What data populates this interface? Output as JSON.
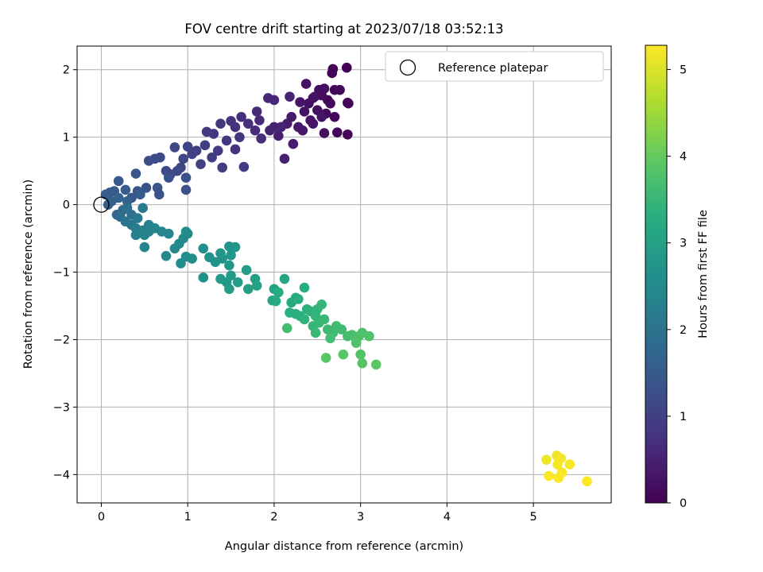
{
  "chart_data": {
    "type": "scatter",
    "title": "FOV centre drift starting at 2023/07/18 03:52:13",
    "xlabel": "Angular distance from reference (arcmin)",
    "ylabel": "Rotation from reference (arcmin)",
    "xlim": [
      -0.28,
      5.9
    ],
    "ylim": [
      -4.42,
      2.35
    ],
    "xticks": [
      0,
      1,
      2,
      3,
      4,
      5
    ],
    "yticks": [
      -4,
      -3,
      -2,
      -1,
      0,
      1,
      2
    ],
    "grid": true,
    "legend": {
      "placement": "top-right",
      "entries": [
        "Reference platepar"
      ]
    },
    "reference_point": {
      "x": 0,
      "y": 0,
      "marker": "open-circle"
    },
    "colorbar": {
      "label": "Hours from first FF file",
      "colormap": "viridis",
      "range": [
        0,
        5.28
      ],
      "ticks": [
        0,
        1,
        2,
        3,
        4,
        5
      ]
    },
    "points": [
      {
        "x": 2.84,
        "y": 2.03,
        "c": 0.02
      },
      {
        "x": 2.68,
        "y": 2.01,
        "c": 0.04
      },
      {
        "x": 2.67,
        "y": 1.95,
        "c": 0.06
      },
      {
        "x": 2.7,
        "y": 1.7,
        "c": 0.08
      },
      {
        "x": 2.76,
        "y": 1.7,
        "c": 0.1
      },
      {
        "x": 2.85,
        "y": 1.51,
        "c": 0.03
      },
      {
        "x": 2.86,
        "y": 1.5,
        "c": 0.05
      },
      {
        "x": 2.85,
        "y": 1.04,
        "c": 0.06
      },
      {
        "x": 2.73,
        "y": 1.07,
        "c": 0.07
      },
      {
        "x": 2.7,
        "y": 1.3,
        "c": 0.09
      },
      {
        "x": 2.65,
        "y": 1.5,
        "c": 0.11
      },
      {
        "x": 2.62,
        "y": 1.55,
        "c": 0.13
      },
      {
        "x": 2.6,
        "y": 1.35,
        "c": 0.15
      },
      {
        "x": 2.55,
        "y": 1.62,
        "c": 0.17
      },
      {
        "x": 2.58,
        "y": 1.06,
        "c": 0.19
      },
      {
        "x": 2.5,
        "y": 1.4,
        "c": 0.21
      },
      {
        "x": 2.45,
        "y": 1.58,
        "c": 0.23
      },
      {
        "x": 2.4,
        "y": 1.5,
        "c": 0.25
      },
      {
        "x": 2.52,
        "y": 1.7,
        "c": 0.2
      },
      {
        "x": 2.58,
        "y": 1.72,
        "c": 0.22
      },
      {
        "x": 2.37,
        "y": 1.79,
        "c": 0.24
      },
      {
        "x": 2.47,
        "y": 1.6,
        "c": 0.26
      },
      {
        "x": 2.35,
        "y": 1.38,
        "c": 0.28
      },
      {
        "x": 2.3,
        "y": 1.52,
        "c": 0.3
      },
      {
        "x": 2.42,
        "y": 1.25,
        "c": 0.32
      },
      {
        "x": 2.45,
        "y": 1.2,
        "c": 0.33
      },
      {
        "x": 2.55,
        "y": 1.3,
        "c": 0.29
      },
      {
        "x": 2.33,
        "y": 1.1,
        "c": 0.35
      },
      {
        "x": 2.28,
        "y": 1.15,
        "c": 0.37
      },
      {
        "x": 2.2,
        "y": 1.3,
        "c": 0.39
      },
      {
        "x": 2.15,
        "y": 1.2,
        "c": 0.41
      },
      {
        "x": 2.22,
        "y": 0.9,
        "c": 0.43
      },
      {
        "x": 2.12,
        "y": 0.68,
        "c": 0.45
      },
      {
        "x": 2.05,
        "y": 1.02,
        "c": 0.47
      },
      {
        "x": 2.0,
        "y": 1.15,
        "c": 0.49
      },
      {
        "x": 1.95,
        "y": 1.1,
        "c": 0.51
      },
      {
        "x": 2.08,
        "y": 1.15,
        "c": 0.53
      },
      {
        "x": 2.18,
        "y": 1.6,
        "c": 0.55
      },
      {
        "x": 2.0,
        "y": 1.55,
        "c": 0.57
      },
      {
        "x": 1.93,
        "y": 1.58,
        "c": 0.59
      },
      {
        "x": 1.8,
        "y": 1.38,
        "c": 0.61
      },
      {
        "x": 1.83,
        "y": 1.25,
        "c": 0.63
      },
      {
        "x": 1.78,
        "y": 1.1,
        "c": 0.65
      },
      {
        "x": 1.85,
        "y": 0.98,
        "c": 0.67
      },
      {
        "x": 1.7,
        "y": 1.2,
        "c": 0.69
      },
      {
        "x": 1.62,
        "y": 1.3,
        "c": 0.72
      },
      {
        "x": 1.55,
        "y": 1.15,
        "c": 0.74
      },
      {
        "x": 1.5,
        "y": 1.24,
        "c": 0.76
      },
      {
        "x": 1.6,
        "y": 1.0,
        "c": 0.78
      },
      {
        "x": 1.55,
        "y": 0.82,
        "c": 0.8
      },
      {
        "x": 1.45,
        "y": 0.95,
        "c": 0.82
      },
      {
        "x": 1.38,
        "y": 1.2,
        "c": 0.84
      },
      {
        "x": 1.3,
        "y": 1.05,
        "c": 0.86
      },
      {
        "x": 1.22,
        "y": 1.08,
        "c": 0.88
      },
      {
        "x": 1.35,
        "y": 0.8,
        "c": 0.9
      },
      {
        "x": 1.4,
        "y": 0.55,
        "c": 0.92
      },
      {
        "x": 1.65,
        "y": 0.56,
        "c": 0.94
      },
      {
        "x": 1.28,
        "y": 0.7,
        "c": 0.96
      },
      {
        "x": 1.2,
        "y": 0.88,
        "c": 0.98
      },
      {
        "x": 1.15,
        "y": 0.6,
        "c": 1.0
      },
      {
        "x": 1.1,
        "y": 0.8,
        "c": 1.02
      },
      {
        "x": 1.05,
        "y": 0.75,
        "c": 1.04
      },
      {
        "x": 1.0,
        "y": 0.86,
        "c": 1.06
      },
      {
        "x": 0.95,
        "y": 0.68,
        "c": 1.08
      },
      {
        "x": 0.92,
        "y": 0.55,
        "c": 1.1
      },
      {
        "x": 0.85,
        "y": 0.85,
        "c": 1.12
      },
      {
        "x": 0.88,
        "y": 0.5,
        "c": 1.14
      },
      {
        "x": 0.8,
        "y": 0.45,
        "c": 1.16
      },
      {
        "x": 0.75,
        "y": 0.5,
        "c": 1.18
      },
      {
        "x": 0.68,
        "y": 0.7,
        "c": 1.2
      },
      {
        "x": 0.62,
        "y": 0.68,
        "c": 1.22
      },
      {
        "x": 0.55,
        "y": 0.65,
        "c": 1.24
      },
      {
        "x": 0.98,
        "y": 0.4,
        "c": 1.26
      },
      {
        "x": 0.98,
        "y": 0.22,
        "c": 1.28
      },
      {
        "x": 0.78,
        "y": 0.4,
        "c": 1.3
      },
      {
        "x": 0.65,
        "y": 0.25,
        "c": 1.32
      },
      {
        "x": 0.67,
        "y": 0.15,
        "c": 1.34
      },
      {
        "x": 0.52,
        "y": 0.25,
        "c": 1.36
      },
      {
        "x": 0.4,
        "y": 0.46,
        "c": 1.38
      },
      {
        "x": 0.42,
        "y": 0.2,
        "c": 1.4
      },
      {
        "x": 0.35,
        "y": 0.1,
        "c": 1.42
      },
      {
        "x": 0.2,
        "y": 0.35,
        "c": 1.44
      },
      {
        "x": 0.15,
        "y": 0.2,
        "c": 1.46
      },
      {
        "x": 0.1,
        "y": 0.18,
        "c": 1.48
      },
      {
        "x": 0.28,
        "y": 0.22,
        "c": 1.5
      },
      {
        "x": 0.45,
        "y": 0.15,
        "c": 1.52
      },
      {
        "x": 0.05,
        "y": 0.15,
        "c": 1.55
      },
      {
        "x": 0.08,
        "y": 0.0,
        "c": 1.58
      },
      {
        "x": 0.12,
        "y": 0.05,
        "c": 1.6
      },
      {
        "x": 0.2,
        "y": 0.1,
        "c": 1.65
      },
      {
        "x": 0.3,
        "y": 0.05,
        "c": 1.7
      },
      {
        "x": 0.25,
        "y": -0.08,
        "c": 1.75
      },
      {
        "x": 0.18,
        "y": -0.15,
        "c": 1.8
      },
      {
        "x": 0.22,
        "y": -0.18,
        "c": 1.85
      },
      {
        "x": 0.3,
        "y": -0.05,
        "c": 1.9
      },
      {
        "x": 0.35,
        "y": -0.15,
        "c": 1.95
      },
      {
        "x": 0.28,
        "y": -0.25,
        "c": 2.0
      },
      {
        "x": 0.35,
        "y": -0.3,
        "c": 2.05
      },
      {
        "x": 0.42,
        "y": -0.2,
        "c": 2.1
      },
      {
        "x": 0.48,
        "y": -0.05,
        "c": 2.15
      },
      {
        "x": 0.4,
        "y": -0.35,
        "c": 2.2
      },
      {
        "x": 0.4,
        "y": -0.45,
        "c": 2.25
      },
      {
        "x": 0.48,
        "y": -0.38,
        "c": 2.28
      },
      {
        "x": 0.55,
        "y": -0.3,
        "c": 2.3
      },
      {
        "x": 0.5,
        "y": -0.45,
        "c": 2.32
      },
      {
        "x": 0.55,
        "y": -0.4,
        "c": 2.34
      },
      {
        "x": 0.62,
        "y": -0.35,
        "c": 2.36
      },
      {
        "x": 0.5,
        "y": -0.63,
        "c": 2.38
      },
      {
        "x": 0.7,
        "y": -0.4,
        "c": 2.4
      },
      {
        "x": 0.78,
        "y": -0.43,
        "c": 2.42
      },
      {
        "x": 0.85,
        "y": -0.65,
        "c": 2.44
      },
      {
        "x": 0.75,
        "y": -0.76,
        "c": 2.46
      },
      {
        "x": 0.9,
        "y": -0.58,
        "c": 2.48
      },
      {
        "x": 0.95,
        "y": -0.5,
        "c": 2.5
      },
      {
        "x": 1.0,
        "y": -0.43,
        "c": 2.52
      },
      {
        "x": 0.98,
        "y": -0.4,
        "c": 2.54
      },
      {
        "x": 1.05,
        "y": -0.8,
        "c": 2.56
      },
      {
        "x": 0.92,
        "y": -0.87,
        "c": 2.58
      },
      {
        "x": 0.98,
        "y": -0.77,
        "c": 2.6
      },
      {
        "x": 1.18,
        "y": -0.65,
        "c": 2.62
      },
      {
        "x": 1.18,
        "y": -1.08,
        "c": 2.64
      },
      {
        "x": 1.25,
        "y": -0.78,
        "c": 2.66
      },
      {
        "x": 1.32,
        "y": -0.85,
        "c": 2.68
      },
      {
        "x": 1.4,
        "y": -0.8,
        "c": 2.7
      },
      {
        "x": 1.38,
        "y": -0.72,
        "c": 2.72
      },
      {
        "x": 1.48,
        "y": -0.62,
        "c": 2.74
      },
      {
        "x": 1.55,
        "y": -0.63,
        "c": 2.76
      },
      {
        "x": 1.5,
        "y": -0.75,
        "c": 2.78
      },
      {
        "x": 1.48,
        "y": -0.9,
        "c": 2.8
      },
      {
        "x": 1.38,
        "y": -1.1,
        "c": 2.82
      },
      {
        "x": 1.45,
        "y": -1.15,
        "c": 2.84
      },
      {
        "x": 1.5,
        "y": -1.05,
        "c": 2.86
      },
      {
        "x": 1.48,
        "y": -1.25,
        "c": 2.88
      },
      {
        "x": 1.58,
        "y": -1.15,
        "c": 2.9
      },
      {
        "x": 1.68,
        "y": -0.97,
        "c": 2.92
      },
      {
        "x": 1.7,
        "y": -1.25,
        "c": 2.95
      },
      {
        "x": 1.78,
        "y": -1.1,
        "c": 2.98
      },
      {
        "x": 1.8,
        "y": -1.2,
        "c": 3.0
      },
      {
        "x": 2.0,
        "y": -1.25,
        "c": 3.05
      },
      {
        "x": 2.12,
        "y": -1.1,
        "c": 3.1
      },
      {
        "x": 1.98,
        "y": -1.42,
        "c": 3.15
      },
      {
        "x": 2.02,
        "y": -1.43,
        "c": 3.18
      },
      {
        "x": 2.05,
        "y": -1.3,
        "c": 3.2
      },
      {
        "x": 2.2,
        "y": -1.45,
        "c": 3.22
      },
      {
        "x": 2.25,
        "y": -1.38,
        "c": 3.24
      },
      {
        "x": 2.28,
        "y": -1.4,
        "c": 3.26
      },
      {
        "x": 2.35,
        "y": -1.23,
        "c": 3.28
      },
      {
        "x": 2.18,
        "y": -1.6,
        "c": 3.3
      },
      {
        "x": 2.25,
        "y": -1.62,
        "c": 3.32
      },
      {
        "x": 2.3,
        "y": -1.65,
        "c": 3.34
      },
      {
        "x": 2.38,
        "y": -1.55,
        "c": 3.36
      },
      {
        "x": 2.42,
        "y": -1.58,
        "c": 3.38
      },
      {
        "x": 2.35,
        "y": -1.7,
        "c": 3.4
      },
      {
        "x": 2.48,
        "y": -1.65,
        "c": 3.42
      },
      {
        "x": 2.5,
        "y": -1.55,
        "c": 3.44
      },
      {
        "x": 2.55,
        "y": -1.48,
        "c": 3.46
      },
      {
        "x": 2.45,
        "y": -1.8,
        "c": 3.48
      },
      {
        "x": 2.52,
        "y": -1.75,
        "c": 3.5
      },
      {
        "x": 2.58,
        "y": -1.7,
        "c": 3.52
      },
      {
        "x": 2.48,
        "y": -1.9,
        "c": 3.54
      },
      {
        "x": 2.62,
        "y": -1.85,
        "c": 3.56
      },
      {
        "x": 2.68,
        "y": -1.9,
        "c": 3.58
      },
      {
        "x": 2.72,
        "y": -1.8,
        "c": 3.6
      },
      {
        "x": 2.78,
        "y": -1.85,
        "c": 3.62
      },
      {
        "x": 2.65,
        "y": -1.98,
        "c": 3.64
      },
      {
        "x": 2.15,
        "y": -1.83,
        "c": 3.66
      },
      {
        "x": 2.85,
        "y": -1.95,
        "c": 3.68
      },
      {
        "x": 2.9,
        "y": -1.93,
        "c": 3.7
      },
      {
        "x": 2.95,
        "y": -2.0,
        "c": 3.72
      },
      {
        "x": 2.98,
        "y": -1.95,
        "c": 3.74
      },
      {
        "x": 3.02,
        "y": -1.9,
        "c": 3.76
      },
      {
        "x": 3.1,
        "y": -1.95,
        "c": 3.78
      },
      {
        "x": 2.95,
        "y": -2.05,
        "c": 3.8
      },
      {
        "x": 3.0,
        "y": -2.22,
        "c": 3.82
      },
      {
        "x": 3.02,
        "y": -2.35,
        "c": 3.84
      },
      {
        "x": 2.8,
        "y": -2.22,
        "c": 3.86
      },
      {
        "x": 2.6,
        "y": -2.27,
        "c": 3.88
      },
      {
        "x": 3.18,
        "y": -2.37,
        "c": 3.9
      },
      {
        "x": 5.15,
        "y": -3.78,
        "c": 5.15
      },
      {
        "x": 5.27,
        "y": -3.72,
        "c": 5.18
      },
      {
        "x": 5.32,
        "y": -3.76,
        "c": 5.2
      },
      {
        "x": 5.28,
        "y": -3.85,
        "c": 5.22
      },
      {
        "x": 5.42,
        "y": -3.85,
        "c": 5.24
      },
      {
        "x": 5.33,
        "y": -3.97,
        "c": 5.25
      },
      {
        "x": 5.18,
        "y": -4.02,
        "c": 5.26
      },
      {
        "x": 5.29,
        "y": -4.05,
        "c": 5.27
      },
      {
        "x": 5.62,
        "y": -4.1,
        "c": 5.28
      }
    ]
  }
}
